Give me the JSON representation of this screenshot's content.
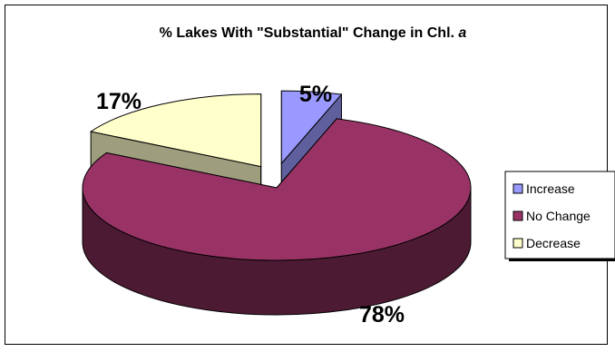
{
  "chart_data": {
    "type": "pie",
    "title_prefix": "% Lakes With \"Substantial\" Change in Chl. ",
    "title_italic": "a",
    "categories": [
      "Increase",
      "No Change",
      "Decrease"
    ],
    "values": [
      5,
      78,
      17
    ],
    "labels": [
      "5%",
      "78%",
      "17%"
    ],
    "legend_position": "right",
    "exploded": [
      "Increase",
      "Decrease"
    ],
    "three_d": true
  },
  "colors": {
    "Increase": "#9999ff",
    "No Change": "#993366",
    "Decrease": "#ffffcc"
  }
}
